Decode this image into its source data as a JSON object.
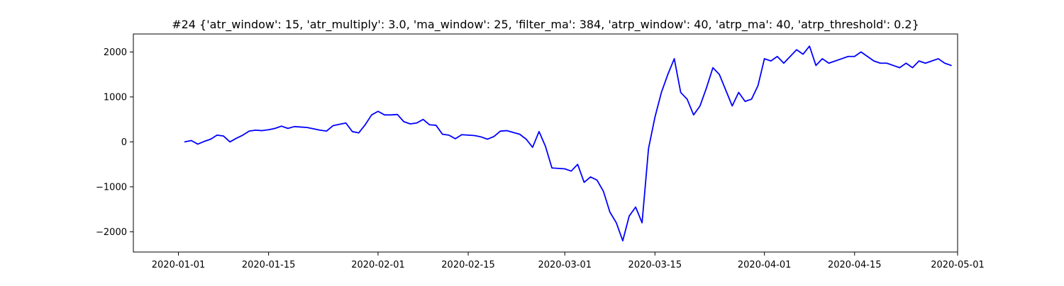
{
  "chart_data": {
    "type": "line",
    "title": "#24 {'atr_window': 15, 'atr_multiply': 3.0, 'ma_window': 25, 'filter_ma': 384, 'atrp_window': 40, 'atrp_ma': 40, 'atrp_threshold': 0.2}",
    "xlabel": "",
    "ylabel": "",
    "xlim": [
      "2019-12-25",
      "2020-05-01"
    ],
    "ylim": [
      -2450,
      2400
    ],
    "grid": false,
    "x_ticks": [
      {
        "date": "2020-01-01",
        "label": "2020-01-01"
      },
      {
        "date": "2020-01-15",
        "label": "2020-01-15"
      },
      {
        "date": "2020-02-01",
        "label": "2020-02-01"
      },
      {
        "date": "2020-02-15",
        "label": "2020-02-15"
      },
      {
        "date": "2020-03-01",
        "label": "2020-03-01"
      },
      {
        "date": "2020-03-15",
        "label": "2020-03-15"
      },
      {
        "date": "2020-04-01",
        "label": "2020-04-01"
      },
      {
        "date": "2020-04-15",
        "label": "2020-04-15"
      },
      {
        "date": "2020-05-01",
        "label": "2020-05-01"
      }
    ],
    "y_ticks": [
      {
        "value": 2000,
        "label": "2000"
      },
      {
        "value": 1000,
        "label": "1000"
      },
      {
        "value": 0,
        "label": "0"
      },
      {
        "value": -1000,
        "label": "−1000"
      },
      {
        "value": -2000,
        "label": "−2000"
      }
    ],
    "series": [
      {
        "color": "#0000ff",
        "points": [
          [
            "2020-01-02",
            0
          ],
          [
            "2020-01-03",
            30
          ],
          [
            "2020-01-04",
            -50
          ],
          [
            "2020-01-05",
            10
          ],
          [
            "2020-01-06",
            60
          ],
          [
            "2020-01-07",
            150
          ],
          [
            "2020-01-08",
            130
          ],
          [
            "2020-01-09",
            0
          ],
          [
            "2020-01-10",
            80
          ],
          [
            "2020-01-11",
            150
          ],
          [
            "2020-01-12",
            240
          ],
          [
            "2020-01-13",
            260
          ],
          [
            "2020-01-14",
            250
          ],
          [
            "2020-01-15",
            270
          ],
          [
            "2020-01-16",
            300
          ],
          [
            "2020-01-17",
            350
          ],
          [
            "2020-01-18",
            300
          ],
          [
            "2020-01-19",
            340
          ],
          [
            "2020-01-20",
            330
          ],
          [
            "2020-01-21",
            320
          ],
          [
            "2020-01-22",
            290
          ],
          [
            "2020-01-23",
            260
          ],
          [
            "2020-01-24",
            240
          ],
          [
            "2020-01-25",
            360
          ],
          [
            "2020-01-26",
            390
          ],
          [
            "2020-01-27",
            420
          ],
          [
            "2020-01-28",
            230
          ],
          [
            "2020-01-29",
            200
          ],
          [
            "2020-01-30",
            380
          ],
          [
            "2020-01-31",
            600
          ],
          [
            "2020-02-01",
            680
          ],
          [
            "2020-02-02",
            600
          ],
          [
            "2020-02-03",
            600
          ],
          [
            "2020-02-04",
            610
          ],
          [
            "2020-02-05",
            450
          ],
          [
            "2020-02-06",
            400
          ],
          [
            "2020-02-07",
            420
          ],
          [
            "2020-02-08",
            500
          ],
          [
            "2020-02-09",
            380
          ],
          [
            "2020-02-10",
            370
          ],
          [
            "2020-02-11",
            170
          ],
          [
            "2020-02-12",
            150
          ],
          [
            "2020-02-13",
            70
          ],
          [
            "2020-02-14",
            160
          ],
          [
            "2020-02-15",
            150
          ],
          [
            "2020-02-16",
            140
          ],
          [
            "2020-02-17",
            110
          ],
          [
            "2020-02-18",
            60
          ],
          [
            "2020-02-19",
            120
          ],
          [
            "2020-02-20",
            240
          ],
          [
            "2020-02-21",
            250
          ],
          [
            "2020-02-22",
            210
          ],
          [
            "2020-02-23",
            170
          ],
          [
            "2020-02-24",
            60
          ],
          [
            "2020-02-25",
            -120
          ],
          [
            "2020-02-26",
            230
          ],
          [
            "2020-02-27",
            -100
          ],
          [
            "2020-02-28",
            -580
          ],
          [
            "2020-02-29",
            -590
          ],
          [
            "2020-03-01",
            -600
          ],
          [
            "2020-03-02",
            -650
          ],
          [
            "2020-03-03",
            -500
          ],
          [
            "2020-03-04",
            -900
          ],
          [
            "2020-03-05",
            -780
          ],
          [
            "2020-03-06",
            -850
          ],
          [
            "2020-03-07",
            -1100
          ],
          [
            "2020-03-08",
            -1560
          ],
          [
            "2020-03-09",
            -1800
          ],
          [
            "2020-03-10",
            -2200
          ],
          [
            "2020-03-11",
            -1650
          ],
          [
            "2020-03-12",
            -1450
          ],
          [
            "2020-03-13",
            -1800
          ],
          [
            "2020-03-14",
            -150
          ],
          [
            "2020-03-15",
            550
          ],
          [
            "2020-03-16",
            1100
          ],
          [
            "2020-03-17",
            1500
          ],
          [
            "2020-03-18",
            1850
          ],
          [
            "2020-03-19",
            1100
          ],
          [
            "2020-03-20",
            950
          ],
          [
            "2020-03-21",
            600
          ],
          [
            "2020-03-22",
            800
          ],
          [
            "2020-03-23",
            1200
          ],
          [
            "2020-03-24",
            1650
          ],
          [
            "2020-03-25",
            1500
          ],
          [
            "2020-03-26",
            1150
          ],
          [
            "2020-03-27",
            800
          ],
          [
            "2020-03-28",
            1100
          ],
          [
            "2020-03-29",
            900
          ],
          [
            "2020-03-30",
            950
          ],
          [
            "2020-03-31",
            1250
          ],
          [
            "2020-04-01",
            1850
          ],
          [
            "2020-04-02",
            1800
          ],
          [
            "2020-04-03",
            1900
          ],
          [
            "2020-04-04",
            1750
          ],
          [
            "2020-04-05",
            1900
          ],
          [
            "2020-04-06",
            2050
          ],
          [
            "2020-04-07",
            1950
          ],
          [
            "2020-04-08",
            2130
          ],
          [
            "2020-04-09",
            1700
          ],
          [
            "2020-04-10",
            1850
          ],
          [
            "2020-04-11",
            1750
          ],
          [
            "2020-04-12",
            1800
          ],
          [
            "2020-04-13",
            1850
          ],
          [
            "2020-04-14",
            1900
          ],
          [
            "2020-04-15",
            1900
          ],
          [
            "2020-04-16",
            2000
          ],
          [
            "2020-04-17",
            1900
          ],
          [
            "2020-04-18",
            1800
          ],
          [
            "2020-04-19",
            1750
          ],
          [
            "2020-04-20",
            1750
          ],
          [
            "2020-04-21",
            1700
          ],
          [
            "2020-04-22",
            1650
          ],
          [
            "2020-04-23",
            1750
          ],
          [
            "2020-04-24",
            1650
          ],
          [
            "2020-04-25",
            1800
          ],
          [
            "2020-04-26",
            1750
          ],
          [
            "2020-04-27",
            1800
          ],
          [
            "2020-04-28",
            1850
          ],
          [
            "2020-04-29",
            1750
          ],
          [
            "2020-04-30",
            1700
          ]
        ]
      }
    ]
  }
}
